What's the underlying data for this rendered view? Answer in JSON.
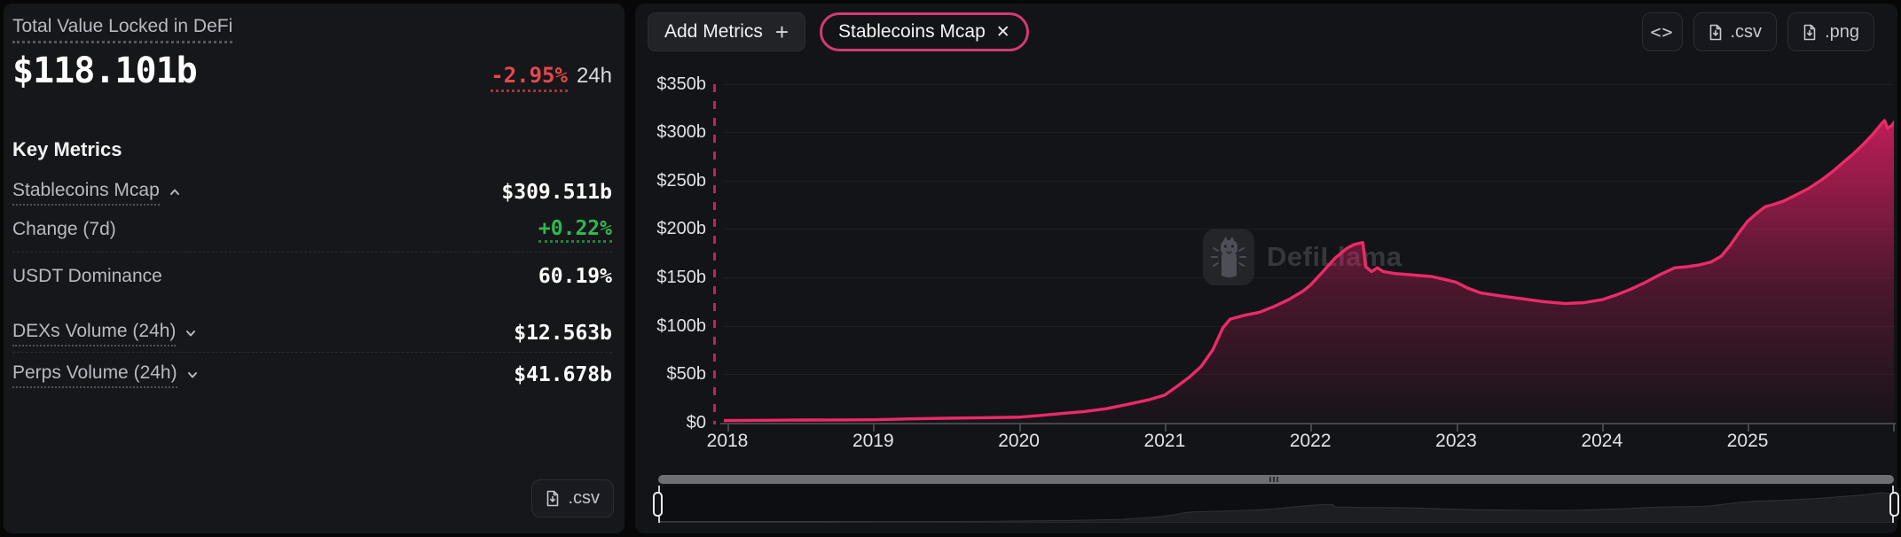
{
  "colors": {
    "accent-pink": "#e32d6d",
    "pill-border": "#d23b71",
    "dashed-guide": "#c51f61",
    "negative-red": "#e5484d",
    "positive-green": "#30b750",
    "panel-bg": "#16171b",
    "chart-panel-bg": "#131418",
    "page-bg": "#070708",
    "scrollbar": "#6e6f74"
  },
  "left_panel": {
    "title": "Total Value Locked in DeFi",
    "tvl_value": "$118.101b",
    "change_24h": "-2.95%",
    "change_period": "24h",
    "key_metrics_heading": "Key Metrics",
    "metrics": [
      {
        "label": "Stablecoins Mcap",
        "value": "$309.511b",
        "caret": "up"
      },
      {
        "label": "Change (7d)",
        "value": "+0.22%"
      },
      {
        "label": "USDT Dominance",
        "value": "60.19%"
      },
      {
        "label": "DEXs Volume (24h)",
        "value": "$12.563b",
        "caret": "down"
      },
      {
        "label": "Perps Volume (24h)",
        "value": "$41.678b",
        "caret": "down"
      }
    ],
    "csv_button_label": ".csv"
  },
  "right_panel": {
    "add_metrics_label": "Add Metrics",
    "plus_glyph": "+",
    "active_metric_pill": "Stablecoins Mcap",
    "pill_close_glyph": "✕",
    "embed_button_label": "<>",
    "csv_button_label": ".csv",
    "png_button_label": ".png",
    "watermark": "DefiLlama"
  },
  "chart_data": {
    "type": "area",
    "title": "Stablecoins Mcap",
    "unit": "billion USD",
    "ylabel": "",
    "xlabel": "",
    "ylim": [
      0,
      350
    ],
    "xlim": [
      2017.98,
      2026.01
    ],
    "grid": "horizontal",
    "legend": "none",
    "y_ticks": [
      "$350b",
      "$300b",
      "$250b",
      "$200b",
      "$150b",
      "$100b",
      "$50b",
      "$0"
    ],
    "y_tick_values": [
      350,
      300,
      250,
      200,
      150,
      100,
      50,
      0
    ],
    "x_ticks": [
      "2018",
      "2019",
      "2020",
      "2021",
      "2022",
      "2023",
      "2024",
      "2025"
    ],
    "x_tick_values": [
      2018,
      2019,
      2020,
      2021,
      2022,
      2023,
      2024,
      2025
    ],
    "series": [
      {
        "name": "Stablecoins Mcap",
        "color": "#e32d6d",
        "points": [
          [
            2017.98,
            2.2
          ],
          [
            2018.25,
            2.5
          ],
          [
            2018.5,
            2.7
          ],
          [
            2018.75,
            2.8
          ],
          [
            2019.0,
            3.0
          ],
          [
            2019.25,
            3.9
          ],
          [
            2019.5,
            4.6
          ],
          [
            2019.75,
            5.1
          ],
          [
            2020.0,
            5.7
          ],
          [
            2020.15,
            7.5
          ],
          [
            2020.3,
            9.5
          ],
          [
            2020.45,
            11.5
          ],
          [
            2020.6,
            14.5
          ],
          [
            2020.75,
            19.0
          ],
          [
            2020.9,
            24.0
          ],
          [
            2021.0,
            28.5
          ],
          [
            2021.08,
            37
          ],
          [
            2021.17,
            47
          ],
          [
            2021.25,
            58
          ],
          [
            2021.33,
            75
          ],
          [
            2021.4,
            98
          ],
          [
            2021.45,
            107
          ],
          [
            2021.55,
            111
          ],
          [
            2021.65,
            114
          ],
          [
            2021.75,
            120
          ],
          [
            2021.85,
            127
          ],
          [
            2021.95,
            136
          ],
          [
            2022.0,
            142
          ],
          [
            2022.08,
            155
          ],
          [
            2022.17,
            170
          ],
          [
            2022.25,
            180
          ],
          [
            2022.3,
            184
          ],
          [
            2022.36,
            186
          ],
          [
            2022.38,
            161
          ],
          [
            2022.42,
            156
          ],
          [
            2022.46,
            160
          ],
          [
            2022.5,
            156
          ],
          [
            2022.58,
            154
          ],
          [
            2022.67,
            153
          ],
          [
            2022.75,
            152
          ],
          [
            2022.83,
            151
          ],
          [
            2022.92,
            148
          ],
          [
            2023.0,
            145
          ],
          [
            2023.08,
            139
          ],
          [
            2023.17,
            134
          ],
          [
            2023.3,
            131
          ],
          [
            2023.45,
            128
          ],
          [
            2023.6,
            125
          ],
          [
            2023.75,
            123
          ],
          [
            2023.88,
            124
          ],
          [
            2024.0,
            127
          ],
          [
            2024.1,
            132
          ],
          [
            2024.2,
            138
          ],
          [
            2024.3,
            145
          ],
          [
            2024.4,
            153
          ],
          [
            2024.5,
            160
          ],
          [
            2024.58,
            161
          ],
          [
            2024.67,
            163
          ],
          [
            2024.75,
            166
          ],
          [
            2024.82,
            172
          ],
          [
            2024.88,
            183
          ],
          [
            2024.94,
            196
          ],
          [
            2025.0,
            208
          ],
          [
            2025.06,
            216
          ],
          [
            2025.12,
            223
          ],
          [
            2025.17,
            225
          ],
          [
            2025.25,
            229
          ],
          [
            2025.33,
            235
          ],
          [
            2025.42,
            242
          ],
          [
            2025.5,
            250
          ],
          [
            2025.58,
            259
          ],
          [
            2025.65,
            268
          ],
          [
            2025.72,
            277
          ],
          [
            2025.79,
            287
          ],
          [
            2025.86,
            298
          ],
          [
            2025.92,
            309
          ],
          [
            2025.94,
            312
          ],
          [
            2025.96,
            304
          ],
          [
            2025.99,
            307
          ],
          [
            2026.01,
            311
          ]
        ]
      }
    ]
  }
}
